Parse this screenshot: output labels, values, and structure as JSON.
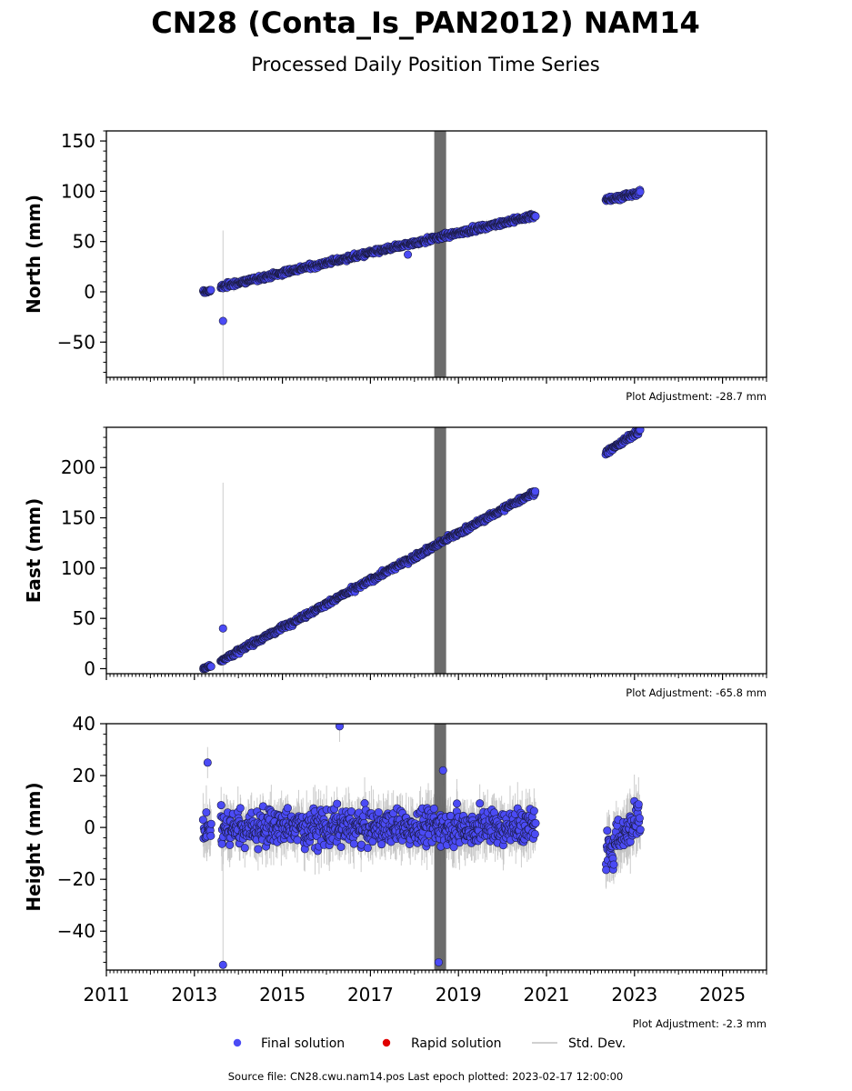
{
  "title": "CN28 (Conta_Is_PAN2012) NAM14",
  "subtitle": "Processed Daily Position Time Series",
  "footer": "Source file: CN28.cwu.nam14.pos  Last epoch plotted: 2023-02-17 12:00:00",
  "colors": {
    "final": "#4b4bf5",
    "rapid": "#e00000",
    "stddev": "#c0c0c0",
    "band": "#646464"
  },
  "legend": [
    {
      "label": "Final solution",
      "kind": "final"
    },
    {
      "label": "Rapid solution",
      "kind": "rapid"
    },
    {
      "label": "Std. Dev.",
      "kind": "stddev"
    }
  ],
  "chart_data": [
    {
      "type": "scatter",
      "ylabel": "North (mm)",
      "adjustment": "Plot Adjustment: -28.7 mm",
      "xlim": [
        2011,
        2026
      ],
      "ylim": [
        -85,
        160
      ],
      "yticks": [
        -50,
        0,
        50,
        100,
        150
      ],
      "ytick_labels": [
        "−50",
        "0",
        "50",
        "100",
        "150"
      ],
      "segments": [
        {
          "x": [
            2013.2,
            2013.38
          ],
          "y": [
            0,
            1
          ],
          "noise": 1.5,
          "err": 2
        },
        {
          "x": [
            2013.6,
            2020.75
          ],
          "y": [
            5,
            76
          ],
          "noise": 2.5,
          "err": 3
        },
        {
          "x": [
            2022.35,
            2023.13
          ],
          "y": [
            91,
            99
          ],
          "noise": 2.5,
          "err": 3
        }
      ],
      "outliers": [
        {
          "x": 2013.65,
          "y": -29,
          "err": 90
        },
        {
          "x": 2017.85,
          "y": 37,
          "err": 3
        }
      ],
      "gap_band": {
        "x": [
          2018.45,
          2018.72
        ]
      }
    },
    {
      "type": "scatter",
      "ylabel": "East (mm)",
      "adjustment": "Plot Adjustment: -65.8 mm",
      "xlim": [
        2011,
        2026
      ],
      "ylim": [
        -5,
        240
      ],
      "yticks": [
        0,
        50,
        100,
        150,
        200
      ],
      "ytick_labels": [
        "0",
        "50",
        "100",
        "150",
        "200"
      ],
      "segments": [
        {
          "x": [
            2013.2,
            2013.38
          ],
          "y": [
            0,
            3
          ],
          "noise": 1.5,
          "err": 2
        },
        {
          "x": [
            2013.6,
            2020.75
          ],
          "y": [
            8,
            176
          ],
          "noise": 2.5,
          "err": 3
        },
        {
          "x": [
            2022.35,
            2023.13
          ],
          "y": [
            215,
            237
          ],
          "noise": 2.5,
          "err": 3
        }
      ],
      "outliers": [
        {
          "x": 2013.65,
          "y": 40,
          "err": 145
        }
      ],
      "gap_band": {
        "x": [
          2018.45,
          2018.72
        ]
      }
    },
    {
      "type": "scatter",
      "ylabel": "Height (mm)",
      "adjustment": "Plot Adjustment: -2.3 mm",
      "xlim": [
        2011,
        2026
      ],
      "ylim": [
        -55,
        40
      ],
      "yticks": [
        -40,
        -20,
        0,
        20,
        40
      ],
      "ytick_labels": [
        "−40",
        "−20",
        "0",
        "20",
        "40"
      ],
      "xticks": [
        2011,
        2013,
        2015,
        2017,
        2019,
        2021,
        2023,
        2025
      ],
      "xtick_labels": [
        "2011",
        "2013",
        "2015",
        "2017",
        "2019",
        "2021",
        "2023",
        "2025"
      ],
      "segments": [
        {
          "x": [
            2013.2,
            2013.38
          ],
          "y": [
            0,
            0
          ],
          "noise": 7,
          "err": 6
        },
        {
          "x": [
            2013.6,
            2020.75
          ],
          "y": [
            0,
            0
          ],
          "noise": 7,
          "err": 6
        },
        {
          "x": [
            2022.35,
            2023.13
          ],
          "y": [
            -10,
            5
          ],
          "noise": 8,
          "err": 7
        }
      ],
      "outliers": [
        {
          "x": 2013.65,
          "y": -53,
          "err": 45
        },
        {
          "x": 2016.3,
          "y": 39,
          "err": 6
        },
        {
          "x": 2018.65,
          "y": 22,
          "err": 6
        },
        {
          "x": 2018.55,
          "y": -52,
          "err": 6
        },
        {
          "x": 2013.3,
          "y": 25,
          "err": 6
        }
      ],
      "gap_band": {
        "x": [
          2018.45,
          2018.72
        ]
      }
    }
  ]
}
